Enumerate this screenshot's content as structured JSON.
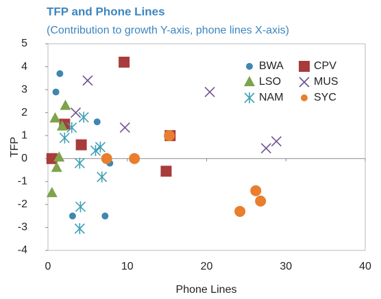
{
  "chart_data": {
    "type": "scatter",
    "title": "TFP and Phone Lines",
    "subtitle": "(Contribution to growth Y-axis, phone lines X-axis)",
    "x_label": "Phone Lines",
    "y_label": "TFP",
    "xlim": [
      0,
      40
    ],
    "xticks": [
      0,
      10,
      20,
      30,
      40
    ],
    "ylim": [
      -4,
      5
    ],
    "yticks": [
      -4,
      -3,
      -2,
      -1,
      0,
      1,
      2,
      3,
      4,
      5
    ],
    "series": [
      {
        "name": "BWA",
        "color": "#3f86b0",
        "marker": "circle",
        "x": [
          1.5,
          1,
          6.2,
          7.8,
          3.1,
          7.2
        ],
        "values": [
          3.7,
          2.9,
          1.6,
          -0.2,
          -2.5,
          -2.5
        ]
      },
      {
        "name": "CPV",
        "color": "#a83b3b",
        "marker": "square",
        "x": [
          9.6,
          2.1,
          4.2,
          0.5,
          15.4,
          14.9
        ],
        "values": [
          4.2,
          1.5,
          0.6,
          0,
          1.0,
          -0.55
        ]
      },
      {
        "name": "LSO",
        "color": "#7ea34a",
        "marker": "triangle",
        "x": [
          0.9,
          2.2,
          1.8,
          1.4,
          1.1,
          0.5
        ],
        "values": [
          1.75,
          2.3,
          1.4,
          0.05,
          -0.4,
          -1.5
        ]
      },
      {
        "name": "MUS",
        "color": "#6e4f8f",
        "marker": "x",
        "x": [
          5,
          20.4,
          9.7,
          3.5,
          27.5,
          28.8
        ],
        "values": [
          3.4,
          2.9,
          1.35,
          2.0,
          0.45,
          0.75
        ]
      },
      {
        "name": "NAM",
        "color": "#3ea0b7",
        "marker": "asterisk",
        "x": [
          4.5,
          3.0,
          2.1,
          4.0,
          6.0,
          6.6,
          6.8,
          4.1,
          4.0
        ],
        "values": [
          1.8,
          1.35,
          0.9,
          -0.2,
          0.35,
          0.5,
          -0.8,
          -2.1,
          -3.05
        ]
      },
      {
        "name": "SYC",
        "color": "#e87e2e",
        "marker": "bigcircle",
        "x": [
          7.4,
          10.9,
          15.3,
          26.2,
          26.8,
          24.2
        ],
        "values": [
          0,
          0,
          1.0,
          -1.4,
          -1.85,
          -2.3
        ]
      }
    ]
  }
}
